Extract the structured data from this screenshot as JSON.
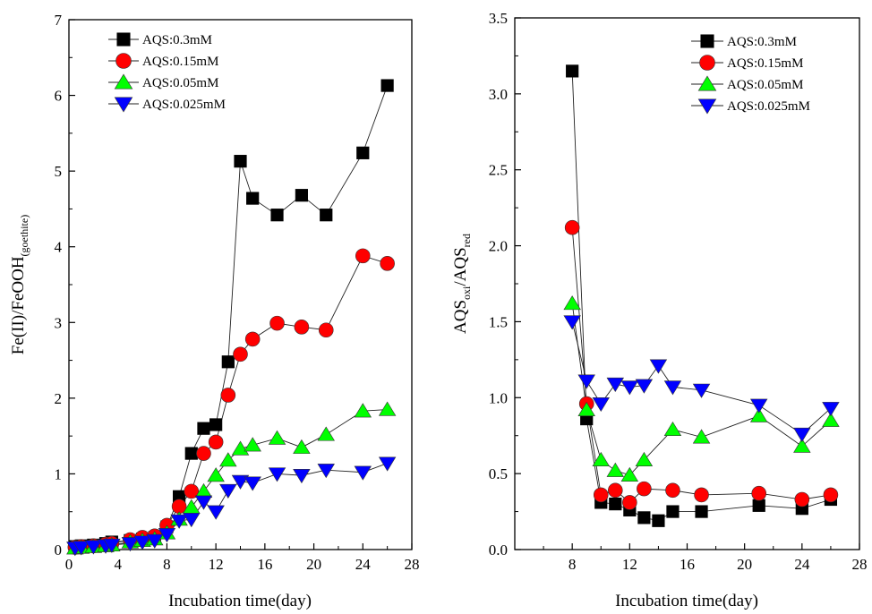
{
  "chart_data": [
    {
      "type": "scatter",
      "xlabel": "Incubation time(day)",
      "ylabel": {
        "main": "Fe(II)/FeOOH",
        "sub": "(goethite)"
      },
      "xlim": [
        0,
        28
      ],
      "ylim": [
        0,
        7
      ],
      "xticks": [
        "0",
        "4",
        "8",
        "12",
        "16",
        "20",
        "24",
        "28"
      ],
      "yticks": [
        "0",
        "1",
        "2",
        "3",
        "4",
        "5",
        "6",
        "7"
      ],
      "legend_position": "top-left",
      "series": [
        {
          "name": "AQS:0.3mM",
          "marker": "square",
          "color": "#000000",
          "x": [
            0.5,
            1,
            2,
            3,
            3.5,
            5,
            6,
            7,
            8,
            9,
            10,
            11,
            12,
            13,
            14,
            15,
            17,
            19,
            21,
            24,
            26
          ],
          "y": [
            0.04,
            0.05,
            0.06,
            0.08,
            0.1,
            0.12,
            0.14,
            0.16,
            0.3,
            0.7,
            1.27,
            1.6,
            1.65,
            2.48,
            5.13,
            4.64,
            4.42,
            4.68,
            4.42,
            5.24,
            6.13
          ]
        },
        {
          "name": "AQS:0.15mM",
          "marker": "circle",
          "color": "#ff0000",
          "x": [
            0.5,
            1,
            2,
            3,
            3.5,
            5,
            6,
            7,
            8,
            9,
            10,
            11,
            12,
            13,
            14,
            15,
            17,
            19,
            21,
            24,
            26
          ],
          "y": [
            0.03,
            0.04,
            0.05,
            0.07,
            0.08,
            0.13,
            0.16,
            0.18,
            0.32,
            0.57,
            0.77,
            1.27,
            1.42,
            2.04,
            2.58,
            2.78,
            2.99,
            2.94,
            2.9,
            3.88,
            3.78
          ]
        },
        {
          "name": "AQS:0.05mM",
          "marker": "triangle-up",
          "color": "#00ff00",
          "x": [
            0.5,
            1,
            2,
            3,
            3.5,
            5,
            6,
            7,
            8,
            9,
            10,
            11,
            12,
            13,
            14,
            15,
            17,
            19,
            21,
            24,
            26
          ],
          "y": [
            0.02,
            0.03,
            0.04,
            0.05,
            0.06,
            0.1,
            0.12,
            0.14,
            0.22,
            0.4,
            0.56,
            0.77,
            0.98,
            1.18,
            1.33,
            1.38,
            1.47,
            1.35,
            1.52,
            1.83,
            1.85
          ]
        },
        {
          "name": "AQS:0.025mM",
          "marker": "triangle-down",
          "color": "#0000ff",
          "x": [
            0.5,
            1,
            2,
            3,
            3.5,
            5,
            6,
            7,
            8,
            9,
            10,
            11,
            12,
            13,
            14,
            15,
            17,
            19,
            21,
            24,
            26
          ],
          "y": [
            0.02,
            0.03,
            0.04,
            0.05,
            0.06,
            0.08,
            0.1,
            0.12,
            0.2,
            0.38,
            0.4,
            0.63,
            0.5,
            0.78,
            0.9,
            0.88,
            1.0,
            0.98,
            1.05,
            1.02,
            1.14
          ]
        }
      ]
    },
    {
      "type": "scatter",
      "xlabel": "Incubation time(day)",
      "ylabel": {
        "part1": "AQS",
        "sub1": "oxi",
        "part2": "/AQS",
        "sub2": "red"
      },
      "xlim": [
        4,
        28
      ],
      "ylim": [
        0,
        3.5
      ],
      "xticks": [
        "8",
        "12",
        "16",
        "20",
        "24",
        "28"
      ],
      "yticks": [
        "0.0",
        "0.5",
        "1.0",
        "1.5",
        "2.0",
        "2.5",
        "3.0",
        "3.5"
      ],
      "legend_position": "top-right",
      "series": [
        {
          "name": "AQS:0.3mM",
          "marker": "square",
          "color": "#000000",
          "x": [
            8,
            9,
            10,
            11,
            12,
            13,
            14,
            15,
            17,
            21,
            24,
            26
          ],
          "y": [
            3.15,
            0.86,
            0.31,
            0.3,
            0.26,
            0.21,
            0.19,
            0.25,
            0.25,
            0.29,
            0.27,
            0.33
          ]
        },
        {
          "name": "AQS:0.15mM",
          "marker": "circle",
          "color": "#ff0000",
          "x": [
            8,
            9,
            10,
            11,
            12,
            13,
            15,
            17,
            21,
            24,
            26
          ],
          "y": [
            2.12,
            0.96,
            0.36,
            0.39,
            0.31,
            0.4,
            0.39,
            0.36,
            0.37,
            0.33,
            0.36
          ]
        },
        {
          "name": "AQS:0.05mM",
          "marker": "triangle-up",
          "color": "#00ff00",
          "x": [
            8,
            9,
            10,
            11,
            12,
            13,
            15,
            17,
            21,
            24,
            26
          ],
          "y": [
            1.62,
            0.92,
            0.59,
            0.52,
            0.49,
            0.59,
            0.79,
            0.74,
            0.88,
            0.68,
            0.85
          ]
        },
        {
          "name": "AQS:0.025mM",
          "marker": "triangle-down",
          "color": "#0000ff",
          "x": [
            8,
            9,
            10,
            11,
            12,
            13,
            14,
            15,
            17,
            21,
            24,
            26
          ],
          "y": [
            1.5,
            1.11,
            0.96,
            1.09,
            1.07,
            1.08,
            1.21,
            1.07,
            1.05,
            0.95,
            0.76,
            0.93
          ]
        }
      ]
    }
  ]
}
